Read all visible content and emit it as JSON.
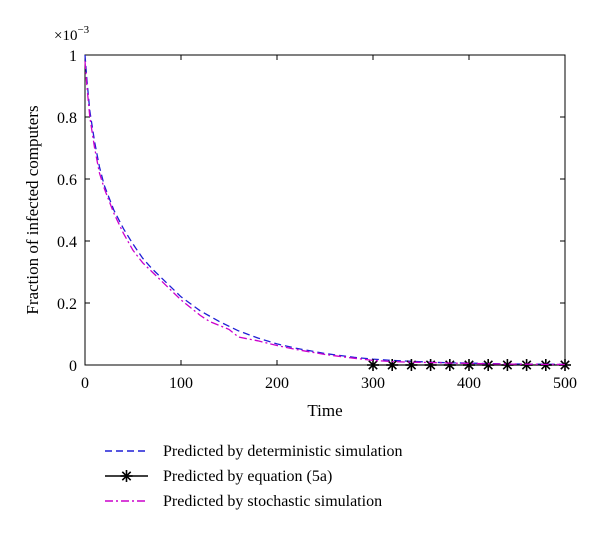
{
  "chart_data": {
    "type": "line",
    "title": "",
    "xlabel": "Time",
    "ylabel": "Fraction of infected computers",
    "y_exponent_base": "×10",
    "y_exponent_power": "−3",
    "xlim": [
      0,
      500
    ],
    "ylim": [
      0,
      1
    ],
    "y_scale_factor": 0.001,
    "grid": false,
    "legend_position": "bottom-outside",
    "x_ticks": [
      0,
      100,
      200,
      300,
      400,
      500
    ],
    "y_ticks": [
      0,
      0.2,
      0.4,
      0.6,
      0.8,
      1
    ],
    "x_tick_labels": [
      "0",
      "100",
      "200",
      "300",
      "400",
      "500"
    ],
    "y_tick_labels": [
      "0",
      "0.2",
      "0.4",
      "0.6",
      "0.8",
      "1"
    ],
    "series": [
      {
        "name": "Predicted by deterministic simulation",
        "color": "#1f1fd6",
        "style": "dashed",
        "marker": "none",
        "x": [
          0,
          2,
          5,
          10,
          15,
          20,
          30,
          40,
          50,
          60,
          70,
          80,
          100,
          120,
          140,
          160,
          180,
          200,
          220,
          250,
          280,
          300,
          320,
          340,
          360,
          380,
          400,
          420,
          440,
          460,
          480,
          500
        ],
        "y": [
          1.0,
          0.92,
          0.82,
          0.72,
          0.64,
          0.58,
          0.5,
          0.44,
          0.39,
          0.345,
          0.31,
          0.28,
          0.22,
          0.175,
          0.14,
          0.11,
          0.087,
          0.068,
          0.054,
          0.037,
          0.025,
          0.019,
          0.015,
          0.012,
          0.009,
          0.007,
          0.006,
          0.0045,
          0.0035,
          0.003,
          0.0025,
          0.002
        ]
      },
      {
        "name": "Predicted by equation (5a)",
        "color": "#000000",
        "style": "solid",
        "marker": "asterisk",
        "x": [
          300,
          320,
          340,
          360,
          380,
          400,
          420,
          440,
          460,
          480,
          500
        ],
        "y": [
          0,
          0,
          0,
          0,
          0,
          0,
          0,
          0,
          0,
          0,
          0
        ]
      },
      {
        "name": "Predicted by stochastic simulation",
        "color": "#cc00cc",
        "style": "dashdot",
        "marker": "none",
        "x": [
          0,
          2,
          5,
          10,
          15,
          20,
          30,
          40,
          50,
          60,
          70,
          80,
          100,
          120,
          130,
          150,
          160,
          180,
          200,
          220,
          250,
          280,
          300,
          320,
          340,
          360,
          380,
          400,
          420,
          440,
          460,
          480,
          500
        ],
        "y": [
          0.98,
          0.9,
          0.8,
          0.7,
          0.62,
          0.57,
          0.49,
          0.425,
          0.37,
          0.33,
          0.3,
          0.27,
          0.21,
          0.16,
          0.14,
          0.115,
          0.09,
          0.078,
          0.063,
          0.05,
          0.034,
          0.022,
          0.015,
          0.011,
          0.009,
          0.008,
          0.006,
          0.005,
          0.004,
          0.003,
          0.0025,
          0.002,
          0.0015
        ]
      }
    ]
  }
}
